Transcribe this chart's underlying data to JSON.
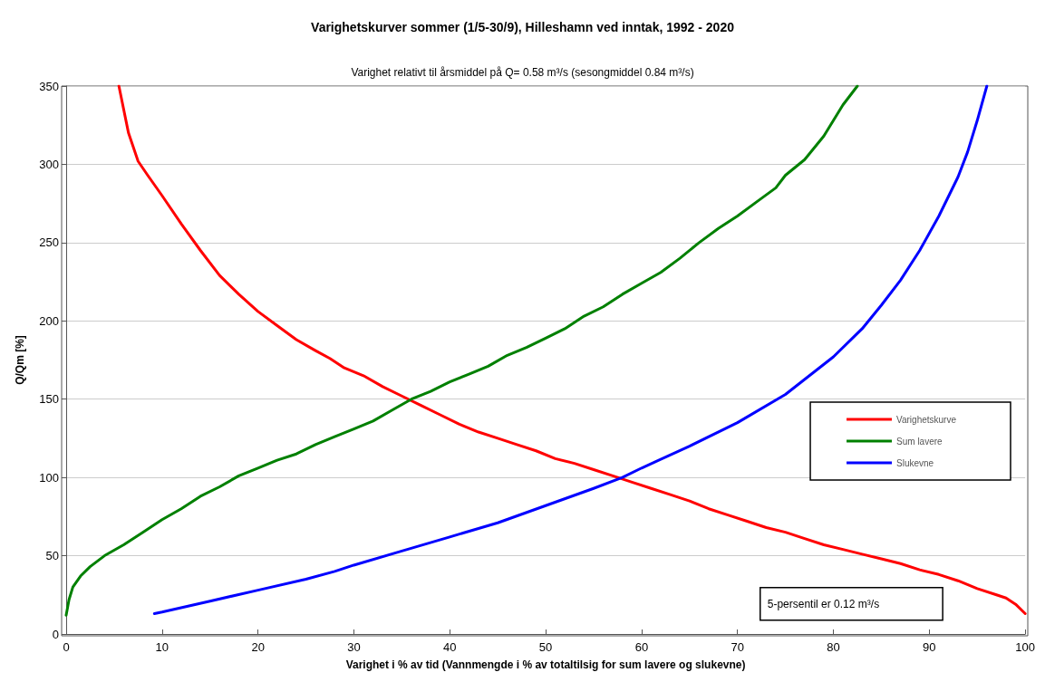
{
  "chart_data": {
    "type": "line",
    "title": "Varighetskurver sommer (1/5-30/9), Hilleshamn ved inntak, 1992 - 2020",
    "subtitle": "Varighet relativt til årsmiddel på Q= 0.58 m³/s (sesongmiddel 0.84 m³/s)",
    "xlabel": "Varighet i % av tid (Vannmengde i % av totaltilsig for sum lavere og slukevne)",
    "ylabel": "Q/Qm [%]",
    "annotations": [
      "5-persentil er 0.12 m³/s"
    ],
    "xlim": [
      0,
      100
    ],
    "xticks": [
      0,
      10,
      20,
      30,
      40,
      50,
      60,
      70,
      80,
      90,
      100
    ],
    "ylim": [
      0,
      350
    ],
    "yticks": [
      0,
      50,
      100,
      150,
      200,
      250,
      300,
      350
    ],
    "grid": "y",
    "legend": "right",
    "marker": "none",
    "line_style": "solid",
    "series": [
      {
        "name": "Varighetskurve",
        "color": "#ff0000",
        "x": [
          5.5,
          6.5,
          7.5,
          8.5,
          10,
          12,
          14,
          16,
          18,
          20,
          22,
          24,
          26,
          27.5,
          29,
          31,
          33,
          35,
          37,
          39,
          41,
          43,
          45,
          47,
          49,
          51,
          53,
          55,
          57,
          59,
          61,
          63,
          65,
          67,
          69,
          71,
          73,
          75,
          77,
          79,
          81,
          83,
          85,
          87,
          89,
          91,
          93,
          95,
          97,
          98,
          99,
          100
        ],
        "values": [
          350,
          320,
          302,
          293,
          280,
          262,
          245,
          229,
          217,
          206,
          197,
          188,
          181,
          176,
          170,
          165,
          158,
          152,
          146,
          140,
          134,
          129,
          125,
          121,
          117,
          112,
          109,
          105,
          101,
          97,
          93,
          89,
          85,
          80,
          76,
          72,
          68,
          65,
          61,
          57,
          54,
          51,
          48,
          45,
          41,
          38,
          34,
          29,
          25,
          23,
          19,
          13
        ]
      },
      {
        "name": "Sum lavere",
        "color": "#008000",
        "x": [
          0,
          0.3,
          0.7,
          1.5,
          2.5,
          4,
          6,
          8,
          10,
          12,
          14,
          16,
          18,
          20,
          22,
          24,
          26,
          28,
          30,
          32,
          34,
          36,
          38,
          40,
          42,
          44,
          46,
          48,
          50,
          52,
          54,
          56,
          58,
          60,
          62,
          64,
          66,
          68,
          70,
          72,
          74,
          75,
          77,
          79,
          80,
          81,
          82.5
        ],
        "values": [
          12,
          22,
          30,
          37,
          43,
          50,
          57,
          65,
          73,
          80,
          88,
          94,
          101,
          106,
          111,
          115,
          121,
          126,
          131,
          136,
          143,
          150,
          155,
          161,
          166,
          171,
          178,
          183,
          189,
          195,
          203,
          209,
          217,
          224,
          231,
          240,
          250,
          259,
          267,
          276,
          285,
          293,
          303,
          318,
          328,
          338,
          350
        ]
      },
      {
        "name": "Slukevne",
        "color": "#0000ff",
        "x": [
          9.2,
          10,
          15,
          20,
          25,
          28,
          30,
          35,
          40,
          45,
          50,
          55,
          58,
          60,
          65,
          70,
          75,
          80,
          83,
          85,
          87,
          89,
          91,
          93,
          94,
          95,
          96
        ],
        "values": [
          13,
          14,
          21,
          28,
          35,
          40,
          44,
          53,
          62,
          71,
          82,
          93,
          100,
          106,
          120,
          135,
          153,
          177,
          195,
          210,
          226,
          245,
          267,
          292,
          308,
          328,
          350
        ]
      }
    ]
  }
}
